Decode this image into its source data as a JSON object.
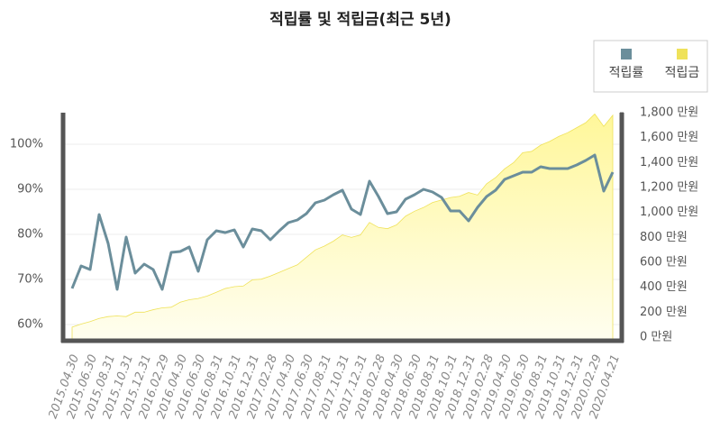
{
  "chart_data": {
    "type": "line-area",
    "title": "적립률 및 적립금(최근 5년)",
    "categories": [
      "2015.04.30",
      null,
      "2015.06.30",
      null,
      "2015.08.31",
      null,
      "2015.10.31",
      null,
      "2015.12.31",
      null,
      "2016.02.29",
      null,
      "2016.04.30",
      null,
      "2016.06.30",
      null,
      "2016.08.31",
      null,
      "2016.10.31",
      null,
      "2016.12.31",
      null,
      "2017.02.28",
      null,
      "2017.04.30",
      null,
      "2017.06.30",
      null,
      "2017.08.31",
      null,
      "2017.10.31",
      null,
      "2017.12.31",
      null,
      "2018.02.28",
      null,
      "2018.04.30",
      null,
      "2018.06.30",
      null,
      "2018.08.31",
      null,
      "2018.10.31",
      null,
      "2018.12.31",
      null,
      "2019.02.28",
      null,
      "2019.04.30",
      null,
      "2019.06.30",
      null,
      "2019.08.31",
      null,
      "2019.10.31",
      null,
      "2019.12.31",
      null,
      "2020.02.29",
      null,
      "2020.04.21"
    ],
    "series": [
      {
        "name": "적립률",
        "color": "#6b8e9b",
        "type": "line",
        "values": [
          68,
          73,
          72.2,
          84.4,
          78,
          67.8,
          79.4,
          71.4,
          73.4,
          72.2,
          67.8,
          76,
          76.2,
          77.2,
          71.8,
          78.8,
          80.8,
          80.4,
          81,
          77.2,
          81.2,
          80.8,
          78.8,
          80.8,
          82.6,
          83.2,
          84.6,
          87,
          87.6,
          88.8,
          89.8,
          85.6,
          84.4,
          91.8,
          88.4,
          84.6,
          85,
          87.8,
          88.8,
          90,
          89.4,
          88.2,
          85.2,
          85.2,
          83,
          86,
          88.4,
          89.8,
          92.2,
          93,
          93.8,
          93.8,
          95,
          94.6,
          94.6,
          94.6,
          95.4,
          96.4,
          97.6,
          89.6,
          93.8
        ]
      },
      {
        "name": "적립금",
        "color": "#efe25a",
        "type": "area",
        "axis": "y2",
        "values": [
          80,
          105,
          125,
          150,
          165,
          170,
          165,
          200,
          200,
          220,
          235,
          240,
          280,
          300,
          310,
          330,
          360,
          390,
          405,
          410,
          460,
          465,
          490,
          520,
          550,
          580,
          640,
          700,
          730,
          770,
          820,
          800,
          820,
          920,
          880,
          870,
          900,
          970,
          1010,
          1040,
          1080,
          1100,
          1120,
          1130,
          1160,
          1140,
          1230,
          1280,
          1350,
          1400,
          1480,
          1490,
          1540,
          1570,
          1610,
          1640,
          1680,
          1720,
          1790,
          1690,
          1780
        ]
      }
    ],
    "ylim": [
      56.4,
      106.6
    ],
    "yticks": [
      {
        "value": 60,
        "label": "60%"
      },
      {
        "value": 70,
        "label": "70%"
      },
      {
        "value": 80,
        "label": "80%"
      },
      {
        "value": 90,
        "label": "90%"
      },
      {
        "value": 100,
        "label": "100%"
      }
    ],
    "y2lim": [
      -29,
      1786
    ],
    "y2ticks": [
      {
        "value": 0,
        "label": "0 만원"
      },
      {
        "value": 200,
        "label": "200 만원"
      },
      {
        "value": 400,
        "label": "400 만원"
      },
      {
        "value": 600,
        "label": "600 만원"
      },
      {
        "value": 800,
        "label": "800 만원"
      },
      {
        "value": 1000,
        "label": "1,000 만원"
      },
      {
        "value": 1200,
        "label": "1,200 만원"
      },
      {
        "value": 1400,
        "label": "1,400 만원"
      },
      {
        "value": 1600,
        "label": "1,600 만원"
      },
      {
        "value": 1800,
        "label": "1,800 만원"
      }
    ],
    "grid": true,
    "legend": "top-right"
  }
}
